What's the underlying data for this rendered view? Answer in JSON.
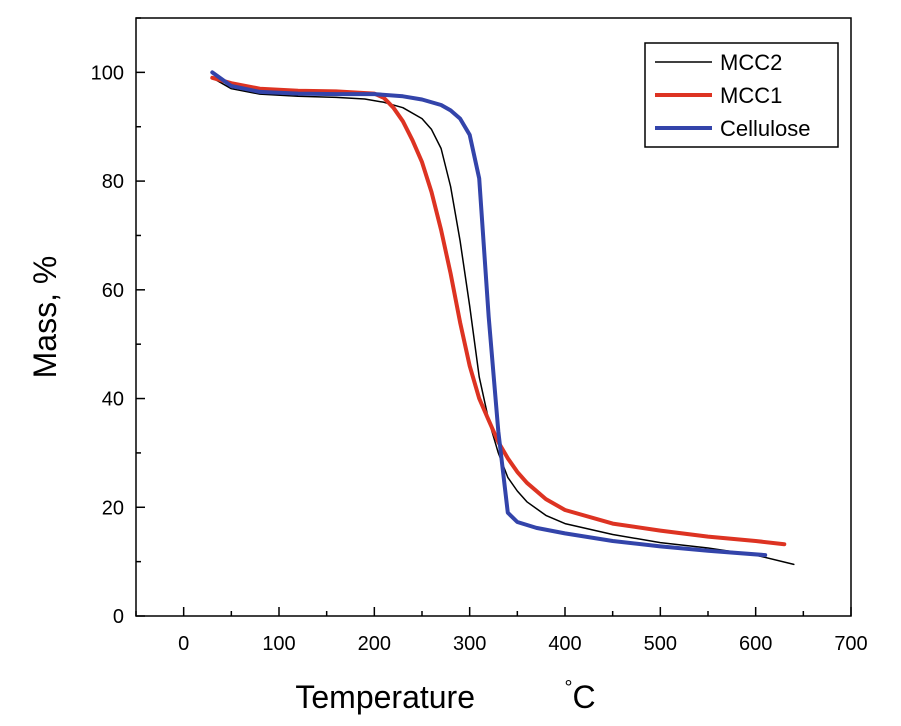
{
  "chart_data": {
    "type": "line",
    "xlabel": "Temperature",
    "xlabel_unit": "°C",
    "ylabel": "Mass, %",
    "xlim": [
      -50,
      700
    ],
    "ylim": [
      0,
      110
    ],
    "x_ticks": [
      0,
      100,
      200,
      300,
      400,
      500,
      600,
      700
    ],
    "y_ticks": [
      0,
      20,
      40,
      60,
      80,
      100
    ],
    "grid": false,
    "legend_position": "top-right",
    "series": [
      {
        "name": "MCC2",
        "color": "#000000",
        "width": 1.5,
        "points": [
          [
            30,
            99
          ],
          [
            50,
            97
          ],
          [
            80,
            96
          ],
          [
            120,
            95.6
          ],
          [
            160,
            95.4
          ],
          [
            190,
            95.1
          ],
          [
            210,
            94.5
          ],
          [
            230,
            93.5
          ],
          [
            250,
            91.5
          ],
          [
            260,
            89.5
          ],
          [
            270,
            86
          ],
          [
            280,
            79
          ],
          [
            290,
            69
          ],
          [
            300,
            57
          ],
          [
            310,
            44
          ],
          [
            320,
            36
          ],
          [
            330,
            30
          ],
          [
            340,
            25.5
          ],
          [
            350,
            23
          ],
          [
            360,
            21
          ],
          [
            380,
            18.5
          ],
          [
            400,
            17
          ],
          [
            450,
            15
          ],
          [
            500,
            13.5
          ],
          [
            550,
            12.5
          ],
          [
            600,
            11.2
          ],
          [
            640,
            9.5
          ]
        ]
      },
      {
        "name": "MCC1",
        "color": "#dd3322",
        "width": 4,
        "points": [
          [
            30,
            99
          ],
          [
            50,
            98
          ],
          [
            80,
            97
          ],
          [
            120,
            96.6
          ],
          [
            160,
            96.5
          ],
          [
            200,
            96.1
          ],
          [
            210,
            95.3
          ],
          [
            220,
            93.5
          ],
          [
            230,
            91
          ],
          [
            240,
            87.5
          ],
          [
            250,
            83.5
          ],
          [
            260,
            78
          ],
          [
            270,
            71
          ],
          [
            280,
            63
          ],
          [
            290,
            54
          ],
          [
            300,
            46
          ],
          [
            310,
            40
          ],
          [
            320,
            36
          ],
          [
            330,
            32
          ],
          [
            340,
            29
          ],
          [
            350,
            26.5
          ],
          [
            360,
            24.5
          ],
          [
            380,
            21.5
          ],
          [
            400,
            19.5
          ],
          [
            450,
            17
          ],
          [
            500,
            15.7
          ],
          [
            550,
            14.6
          ],
          [
            600,
            13.8
          ],
          [
            630,
            13.2
          ]
        ]
      },
      {
        "name": "Cellulose",
        "color": "#3344aa",
        "width": 4,
        "points": [
          [
            30,
            100
          ],
          [
            50,
            97.5
          ],
          [
            80,
            96.4
          ],
          [
            120,
            96.1
          ],
          [
            160,
            96
          ],
          [
            200,
            96
          ],
          [
            230,
            95.6
          ],
          [
            250,
            95
          ],
          [
            270,
            94
          ],
          [
            280,
            93
          ],
          [
            290,
            91.5
          ],
          [
            300,
            88.5
          ],
          [
            310,
            80.5
          ],
          [
            320,
            55
          ],
          [
            330,
            34
          ],
          [
            340,
            19
          ],
          [
            350,
            17.3
          ],
          [
            370,
            16.2
          ],
          [
            400,
            15.2
          ],
          [
            450,
            13.8
          ],
          [
            500,
            12.8
          ],
          [
            550,
            12
          ],
          [
            610,
            11.2
          ]
        ]
      }
    ]
  }
}
